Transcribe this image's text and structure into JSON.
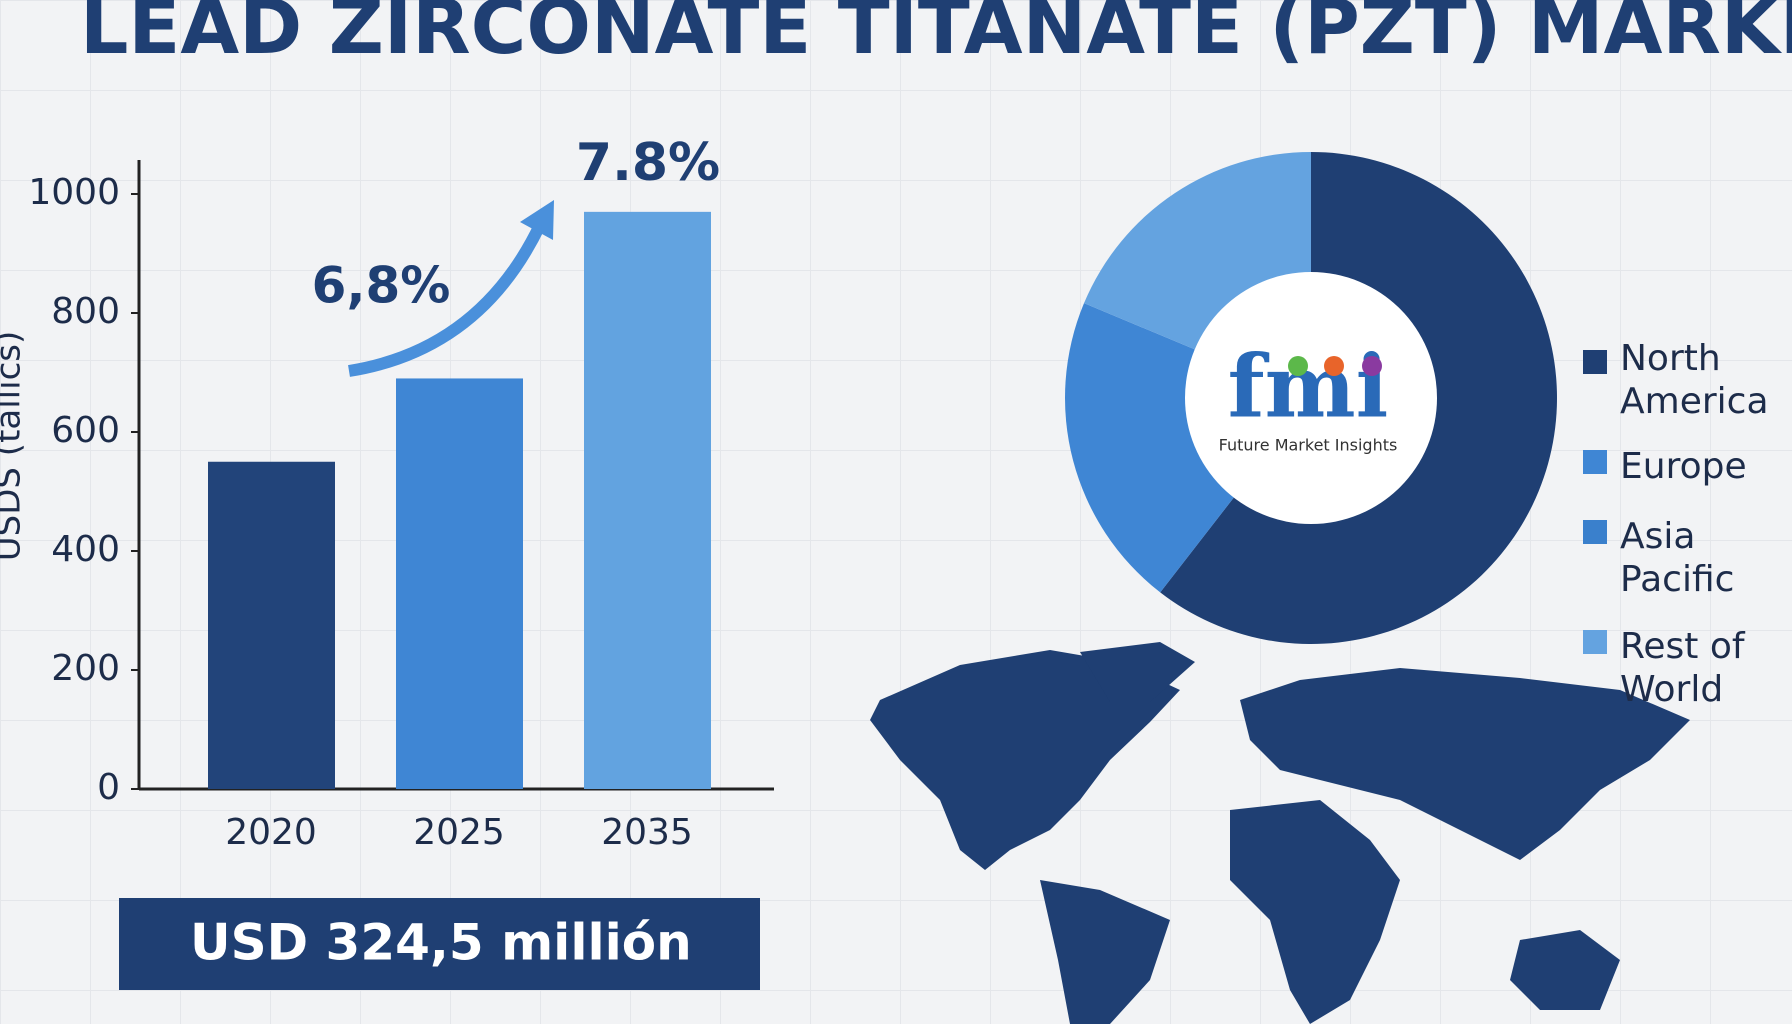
{
  "title": "LEAD ZIRCONATE TITANATE (PZT) MARKET",
  "banner": "USD 324,5 millión",
  "logo": {
    "mark": "fmi",
    "text": "Future Market Insights"
  },
  "chart_data": [
    {
      "type": "bar",
      "ylabel": "USDS (tallics)",
      "categories": [
        "2020",
        "2025",
        "2035"
      ],
      "values": [
        550,
        690,
        970
      ],
      "colors": [
        "#22447a",
        "#3f86d4",
        "#62a3e0"
      ],
      "annotations": [
        "6,8%",
        "7.8%"
      ],
      "ylim": [
        0,
        1000
      ],
      "yticks": [
        0,
        200,
        400,
        600,
        800,
        1000
      ]
    },
    {
      "type": "pie",
      "donut": true,
      "categories": [
        "North America",
        "Europe",
        "Asia Pacific",
        "Rest of World"
      ],
      "values": [
        60.5,
        20.8,
        0,
        18.7
      ],
      "colors": [
        "#1f3f73",
        "#3f86d4",
        "#3a80cc",
        "#64a3e0"
      ]
    }
  ]
}
